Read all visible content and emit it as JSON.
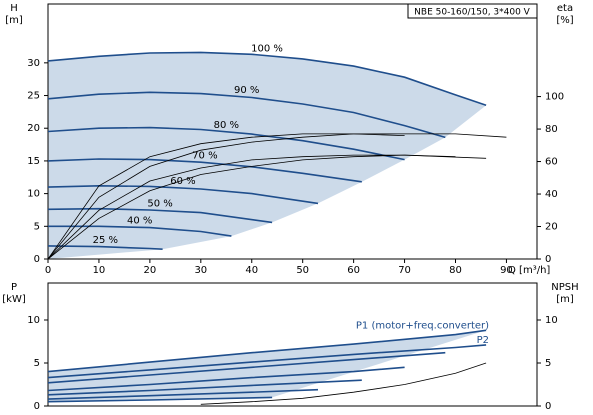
{
  "chart_data": [
    {
      "type": "line",
      "title": "NBE 50-160/150, 3*400 V",
      "ylabel": "H",
      "ylabel_unit": "[m]",
      "y2label": "eta",
      "y2label_unit": "[%]",
      "xlabel": "Q [m³/h]",
      "xlim": [
        0,
        96
      ],
      "ylim": [
        0,
        39
      ],
      "y2lim": [
        0,
        157
      ],
      "xticks": [
        0,
        10,
        20,
        30,
        40,
        50,
        60,
        70,
        80,
        90
      ],
      "yticks": [
        0,
        5,
        10,
        15,
        20,
        25,
        30
      ],
      "y2ticks": [
        0,
        20,
        40,
        60,
        80,
        100
      ],
      "region_color": "#c3d4e5",
      "series": [
        {
          "name": "100 %",
          "color": "#1f4e8c",
          "x": [
            0,
            10,
            20,
            30,
            40,
            50,
            60,
            70,
            80,
            86
          ],
          "values": [
            30.3,
            31,
            31.5,
            31.6,
            31.3,
            30.6,
            29.5,
            27.8,
            25.1,
            23.5
          ]
        },
        {
          "name": "90 %",
          "color": "#1f4e8c",
          "x": [
            0,
            10,
            20,
            30,
            40,
            50,
            60,
            70,
            78
          ],
          "values": [
            24.5,
            25.2,
            25.5,
            25.3,
            24.7,
            23.7,
            22.4,
            20.4,
            18.6
          ]
        },
        {
          "name": "80 %",
          "color": "#1f4e8c",
          "x": [
            0,
            10,
            20,
            30,
            40,
            50,
            60,
            70
          ],
          "values": [
            19.5,
            20,
            20.1,
            19.8,
            19.1,
            18.1,
            16.8,
            15.2
          ]
        },
        {
          "name": "70 %",
          "color": "#1f4e8c",
          "x": [
            0,
            10,
            20,
            30,
            40,
            50,
            61.6
          ],
          "values": [
            15,
            15.3,
            15.2,
            14.8,
            14.1,
            13.1,
            11.8
          ]
        },
        {
          "name": "60 %",
          "color": "#1f4e8c",
          "x": [
            0,
            10,
            20,
            30,
            40,
            53
          ],
          "values": [
            11,
            11.2,
            11.1,
            10.7,
            10,
            8.5
          ]
        },
        {
          "name": "50 %",
          "color": "#1f4e8c",
          "x": [
            0,
            10,
            20,
            30,
            44
          ],
          "values": [
            7.6,
            7.7,
            7.5,
            7.1,
            5.6
          ]
        },
        {
          "name": "40 %",
          "color": "#1f4e8c",
          "x": [
            0,
            10,
            20,
            30,
            36
          ],
          "values": [
            5,
            5,
            4.8,
            4.2,
            3.5
          ]
        },
        {
          "name": "25 %",
          "color": "#1f4e8c",
          "x": [
            0,
            10,
            20,
            22.5
          ],
          "values": [
            2,
            1.9,
            1.6,
            1.5
          ]
        },
        {
          "color": "#000000",
          "axis": "y2",
          "x": [
            0,
            10,
            20,
            30,
            40,
            50,
            60,
            70,
            80,
            90
          ],
          "values": [
            0,
            38,
            57,
            67,
            72,
            75,
            77,
            77,
            77,
            75
          ]
        },
        {
          "color": "#000000",
          "axis": "y2",
          "x": [
            0,
            10,
            20,
            30,
            40,
            50,
            60,
            70
          ],
          "values": [
            0,
            45,
            63,
            71,
            75,
            77,
            77,
            76
          ]
        },
        {
          "color": "#000000",
          "axis": "y2",
          "x": [
            0,
            10,
            20,
            30,
            40,
            50,
            60,
            70,
            86
          ],
          "values": [
            0,
            30,
            48,
            56,
            61,
            63,
            64,
            64,
            62
          ]
        },
        {
          "color": "#000000",
          "axis": "y2",
          "x": [
            0,
            10,
            20,
            30,
            40,
            50,
            60,
            70,
            80
          ],
          "values": [
            0,
            25,
            42,
            52,
            57,
            61,
            63,
            64,
            63
          ]
        }
      ]
    },
    {
      "type": "line",
      "ylabel": "P",
      "ylabel_unit": "[kW]",
      "y2label": "NPSH",
      "y2label_unit": "[m]",
      "xlim": [
        0,
        96
      ],
      "ylim": [
        0,
        14.3
      ],
      "y2lim": [
        0,
        14.3
      ],
      "yticks": [
        0,
        5,
        10
      ],
      "y2ticks": [
        0,
        5,
        10
      ],
      "region_color": "#c3d4e5",
      "series": [
        {
          "name": "P1 (motor+freq.converter)",
          "color": "#1f4e8c",
          "x": [
            0,
            20,
            40,
            60,
            80,
            86
          ],
          "values": [
            4,
            5.1,
            6.2,
            7.2,
            8.3,
            8.8
          ]
        },
        {
          "name": "P2",
          "color": "#1f4e8c",
          "x": [
            0,
            20,
            40,
            60,
            80,
            86
          ],
          "values": [
            3.3,
            4.2,
            5.1,
            6,
            6.8,
            7.1
          ]
        },
        {
          "color": "#1f4e8c",
          "x": [
            0,
            20,
            40,
            60,
            78
          ],
          "values": [
            2.7,
            3.6,
            4.5,
            5.4,
            6.2
          ]
        },
        {
          "color": "#1f4e8c",
          "x": [
            0,
            20,
            40,
            60,
            70
          ],
          "values": [
            1.8,
            2.5,
            3.3,
            4,
            4.5
          ]
        },
        {
          "color": "#1f4e8c",
          "x": [
            0,
            20,
            40,
            61.6
          ],
          "values": [
            1.3,
            1.8,
            2.4,
            3
          ]
        },
        {
          "color": "#1f4e8c",
          "x": [
            0,
            20,
            40,
            53
          ],
          "values": [
            0.8,
            1.2,
            1.6,
            1.9
          ]
        },
        {
          "color": "#1f4e8c",
          "x": [
            0,
            20,
            44
          ],
          "values": [
            0.5,
            0.7,
            1
          ]
        },
        {
          "color": "#000000",
          "axis": "y2",
          "x": [
            30,
            40,
            50,
            60,
            70,
            80,
            86
          ],
          "values": [
            0.2,
            0.5,
            0.9,
            1.6,
            2.5,
            3.8,
            5
          ]
        }
      ]
    }
  ]
}
